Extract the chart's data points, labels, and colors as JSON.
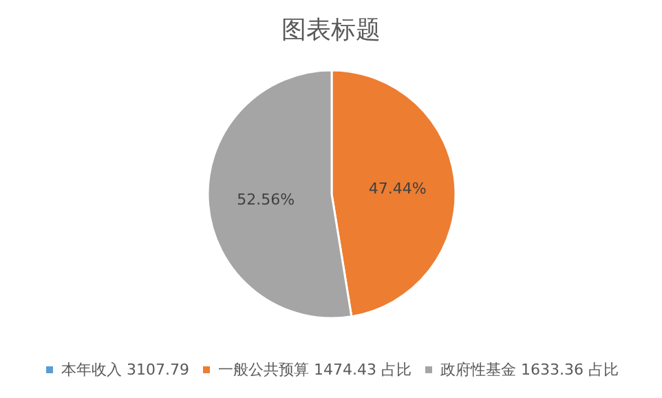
{
  "chart_data": {
    "type": "pie",
    "title": "图表标题",
    "categories": [
      "本年收入 3107.79",
      "一般公共预算 1474.43 占比",
      "政府性基金 1633.36 占比"
    ],
    "values": [
      0,
      47.44,
      52.56
    ],
    "colors": [
      "#5b9bd5",
      "#ed7d31",
      "#a5a5a5"
    ],
    "value_labels": [
      null,
      "47.44%",
      "52.56%"
    ],
    "legend": "bottom"
  }
}
